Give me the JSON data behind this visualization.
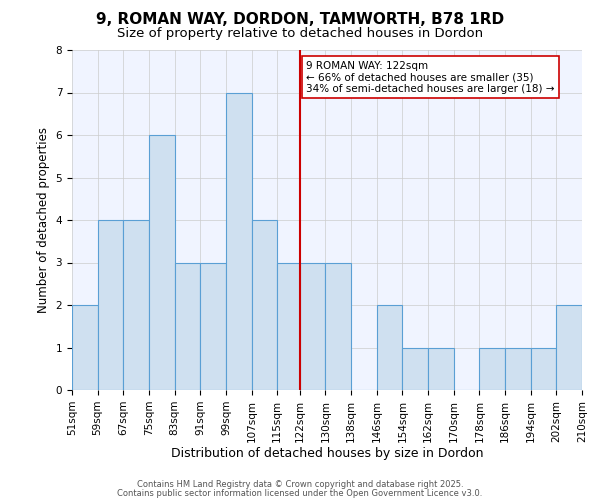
{
  "title": "9, ROMAN WAY, DORDON, TAMWORTH, B78 1RD",
  "subtitle": "Size of property relative to detached houses in Dordon",
  "xlabel": "Distribution of detached houses by size in Dordon",
  "ylabel": "Number of detached properties",
  "bin_edges": [
    51,
    59,
    67,
    75,
    83,
    91,
    99,
    107,
    115,
    122,
    130,
    138,
    146,
    154,
    162,
    170,
    178,
    186,
    194,
    202,
    210
  ],
  "bar_heights": [
    2,
    4,
    4,
    6,
    3,
    3,
    7,
    4,
    3,
    3,
    3,
    0,
    2,
    1,
    1,
    0,
    1,
    1,
    1,
    2
  ],
  "bar_facecolor": "#cfe0f0",
  "bar_edgecolor": "#5a9fd4",
  "reference_line_x": 122,
  "reference_line_color": "#cc0000",
  "annotation_line1": "9 ROMAN WAY: 122sqm",
  "annotation_line2": "← 66% of detached houses are smaller (35)",
  "annotation_line3": "34% of semi-detached houses are larger (18) →",
  "annotation_box_edgecolor": "#cc0000",
  "annotation_box_facecolor": "#ffffff",
  "ylim": [
    0,
    8
  ],
  "yticks": [
    0,
    1,
    2,
    3,
    4,
    5,
    6,
    7,
    8
  ],
  "grid_color": "#cccccc",
  "background_color": "#f0f4ff",
  "footer_line1": "Contains HM Land Registry data © Crown copyright and database right 2025.",
  "footer_line2": "Contains public sector information licensed under the Open Government Licence v3.0.",
  "title_fontsize": 11,
  "subtitle_fontsize": 9.5,
  "xlabel_fontsize": 9,
  "ylabel_fontsize": 8.5,
  "tick_fontsize": 7.5,
  "annotation_fontsize": 7.5,
  "footer_fontsize": 6
}
